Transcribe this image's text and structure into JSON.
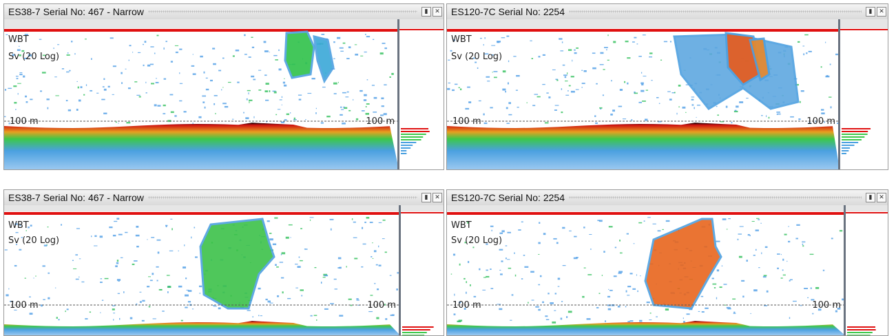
{
  "panels": [
    {
      "title": "ES38-7 Serial No: 467 - Narrow",
      "channel": "WBT",
      "variable": "Sv (20 Log)",
      "depth_labels": [
        "100 m",
        "100 m"
      ]
    },
    {
      "title": "ES120-7C Serial No: 2254",
      "channel": "WBT",
      "variable": "Sv (20 Log)",
      "depth_labels": [
        "100 m",
        "100 m"
      ]
    },
    {
      "title": "ES38-7 Serial No: 467 - Narrow",
      "channel": "WBT",
      "variable": "Sv (20 Log)",
      "depth_labels": [
        "100 m",
        "100 m"
      ]
    },
    {
      "title": "ES120-7C Serial No: 2254",
      "channel": "WBT",
      "variable": "Sv (20 Log)",
      "depth_labels": [
        "100 m",
        "100 m"
      ]
    }
  ]
}
